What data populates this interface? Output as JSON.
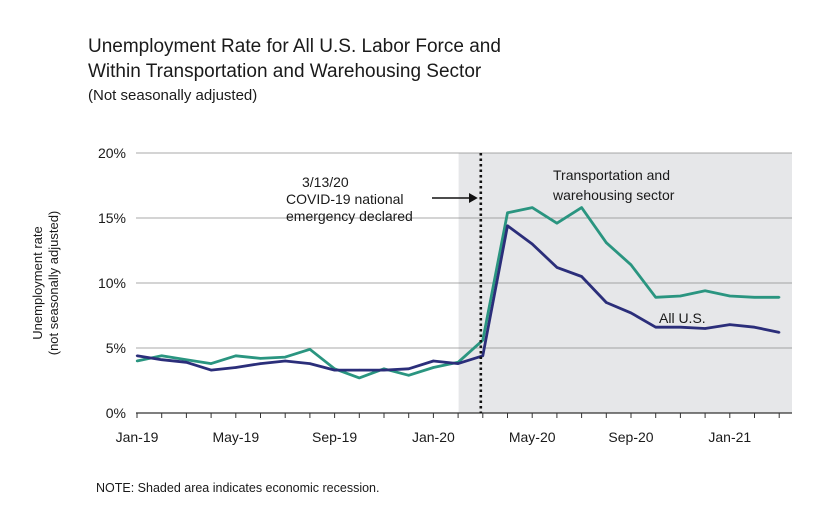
{
  "chart_data": {
    "type": "line",
    "title": "Unemployment Rate for All U.S. Labor Force and",
    "title_line2": "Within Transportation and Warehousing Sector",
    "subtitle": "(Not seasonally adjusted)",
    "ylabel": "Unemployment rate",
    "ylabel_line2": "(not seasonally adjusted)",
    "xlabel": "",
    "ylim": [
      0,
      20
    ],
    "yticks": [
      0,
      5,
      10,
      15,
      20
    ],
    "ytick_labels": [
      "0%",
      "5%",
      "10%",
      "15%",
      "20%"
    ],
    "x": [
      "2019-01",
      "2019-02",
      "2019-03",
      "2019-04",
      "2019-05",
      "2019-06",
      "2019-07",
      "2019-08",
      "2019-09",
      "2019-10",
      "2019-11",
      "2019-12",
      "2020-01",
      "2020-02",
      "2020-03",
      "2020-04",
      "2020-05",
      "2020-06",
      "2020-07",
      "2020-08",
      "2020-09",
      "2020-10",
      "2020-11",
      "2020-12",
      "2021-01",
      "2021-02",
      "2021-03"
    ],
    "xtick_labels": [
      {
        "month": "2019-01",
        "label": "Jan-19"
      },
      {
        "month": "2019-05",
        "label": "May-19"
      },
      {
        "month": "2019-09",
        "label": "Sep-19"
      },
      {
        "month": "2020-01",
        "label": "Jan-20"
      },
      {
        "month": "2020-05",
        "label": "May-20"
      },
      {
        "month": "2020-09",
        "label": "Sep-20"
      },
      {
        "month": "2021-01",
        "label": "Jan-21"
      }
    ],
    "series": [
      {
        "name": "Transportation and warehousing sector",
        "label_line1": "Transportation and",
        "label_line2": "warehousing sector",
        "color": "#2a9580",
        "values": [
          4.0,
          4.4,
          4.1,
          3.8,
          4.4,
          4.2,
          4.3,
          4.9,
          3.4,
          2.7,
          3.4,
          2.9,
          3.5,
          3.9,
          5.6,
          15.4,
          15.8,
          14.6,
          15.8,
          13.1,
          11.4,
          8.9,
          9.0,
          9.4,
          9.0,
          8.9,
          8.9
        ]
      },
      {
        "name": "All U.S.",
        "label_line1": "All U.S.",
        "color": "#2b2e7a",
        "values": [
          4.4,
          4.1,
          3.9,
          3.3,
          3.5,
          3.8,
          4.0,
          3.8,
          3.3,
          3.3,
          3.3,
          3.4,
          4.0,
          3.8,
          4.4,
          14.4,
          13.0,
          11.2,
          10.5,
          8.5,
          7.7,
          6.6,
          6.6,
          6.5,
          6.8,
          6.6,
          6.2
        ]
      }
    ],
    "shaded_region": {
      "start": "2020-02",
      "end": "2021-03",
      "meaning": "economic recession",
      "color": "#e6e7e9"
    },
    "annotation": {
      "month": "2020-03",
      "line1": "3/13/20",
      "line2": "COVID-19 national",
      "line3": "emergency declared"
    },
    "grid": true,
    "legend": "inline labels"
  },
  "note": "NOTE: Shaded area indicates economic recession."
}
